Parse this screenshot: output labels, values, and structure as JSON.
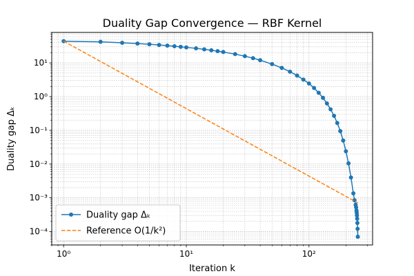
{
  "chart_data": {
    "type": "line",
    "title": "Duality Gap Convergence — RBF Kernel",
    "xlabel": "Iteration k",
    "ylabel": "Duality gap Δₖ",
    "xscale": "log",
    "yscale": "log",
    "xlim": [
      0.8,
      330
    ],
    "ylim": [
      4e-05,
      80
    ],
    "grid": true,
    "grid_minor": true,
    "legend_position": "lower-left",
    "x_ticks": [
      {
        "value": 1,
        "label": "10⁰"
      },
      {
        "value": 10,
        "label": "10¹"
      },
      {
        "value": 100,
        "label": "10²"
      }
    ],
    "y_ticks": [
      {
        "value": 0.0001,
        "label": "10⁻⁴"
      },
      {
        "value": 0.001,
        "label": "10⁻³"
      },
      {
        "value": 0.01,
        "label": "10⁻²"
      },
      {
        "value": 0.1,
        "label": "10⁻¹"
      },
      {
        "value": 1,
        "label": "10⁰"
      },
      {
        "value": 10,
        "label": "10¹"
      }
    ],
    "series": [
      {
        "name": "Duality gap Δₖ",
        "color": "#1f77b4",
        "style": "solid",
        "marker": "circle",
        "x": [
          1,
          2,
          3,
          4,
          5,
          6,
          7,
          8,
          9,
          10,
          12,
          14,
          16,
          18,
          20,
          25,
          30,
          35,
          40,
          50,
          60,
          70,
          80,
          90,
          100,
          110,
          120,
          130,
          140,
          150,
          160,
          170,
          180,
          190,
          200,
          210,
          220,
          230,
          235,
          240,
          242,
          244,
          245,
          246,
          247,
          248,
          249,
          250
        ],
        "y": [
          44,
          42,
          39.5,
          37.5,
          35.7,
          34,
          32.5,
          31.2,
          30,
          28.8,
          27,
          25.2,
          23.7,
          22.3,
          21,
          18.2,
          15.8,
          13.8,
          12,
          9.2,
          7.1,
          5.5,
          4.2,
          3.2,
          2.45,
          1.8,
          1.3,
          0.92,
          0.63,
          0.42,
          0.27,
          0.165,
          0.095,
          0.05,
          0.024,
          0.0105,
          0.004,
          0.00135,
          0.00085,
          0.00062,
          0.00052,
          0.00042,
          0.00036,
          0.0003,
          0.00024,
          0.00018,
          0.00012,
          7e-05
        ]
      },
      {
        "name": "Reference O(1/k²)",
        "color": "#ff7f0e",
        "style": "dashed",
        "marker": "none",
        "x": [
          1,
          250
        ],
        "y": [
          44,
          0.000704
        ]
      }
    ]
  }
}
